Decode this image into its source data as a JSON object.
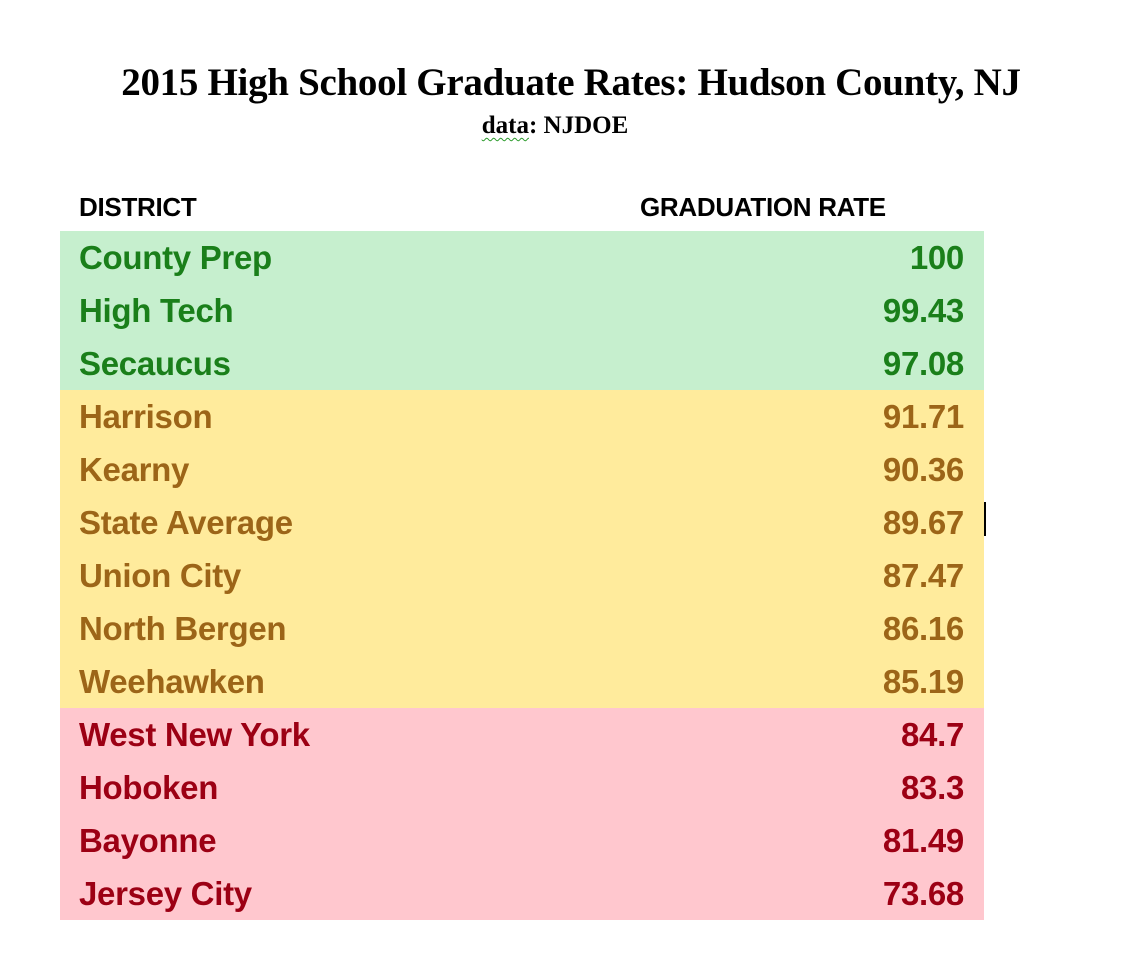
{
  "header": {
    "title": "2015 High School Graduate Rates: Hudson County, NJ",
    "subtitle_prefix": "data",
    "subtitle_rest": ": NJDOE"
  },
  "table": {
    "columns": [
      "DISTRICT",
      "GRADUATION RATE"
    ],
    "colors": {
      "green": {
        "background": "#c6efce",
        "text": "#1a7f1a"
      },
      "yellow": {
        "background": "#ffeb9c",
        "text": "#9c6518"
      },
      "red": {
        "background": "#ffc7ce",
        "text": "#9c0014"
      }
    },
    "rows": [
      {
        "district": "County Prep",
        "rate": "100",
        "band": "green"
      },
      {
        "district": "High Tech",
        "rate": "99.43",
        "band": "green"
      },
      {
        "district": "Secaucus",
        "rate": "97.08",
        "band": "green"
      },
      {
        "district": "Harrison",
        "rate": "91.71",
        "band": "yellow"
      },
      {
        "district": "Kearny",
        "rate": "90.36",
        "band": "yellow"
      },
      {
        "district": "State Average",
        "rate": "89.67",
        "band": "yellow"
      },
      {
        "district": "Union City",
        "rate": "87.47",
        "band": "yellow"
      },
      {
        "district": "North Bergen",
        "rate": "86.16",
        "band": "yellow"
      },
      {
        "district": "Weehawken",
        "rate": "85.19",
        "band": "yellow"
      },
      {
        "district": "West New York",
        "rate": "84.7",
        "band": "red"
      },
      {
        "district": "Hoboken",
        "rate": "83.3",
        "band": "red"
      },
      {
        "district": "Bayonne",
        "rate": "81.49",
        "band": "red"
      },
      {
        "district": "Jersey City",
        "rate": "73.68",
        "band": "red"
      }
    ]
  }
}
